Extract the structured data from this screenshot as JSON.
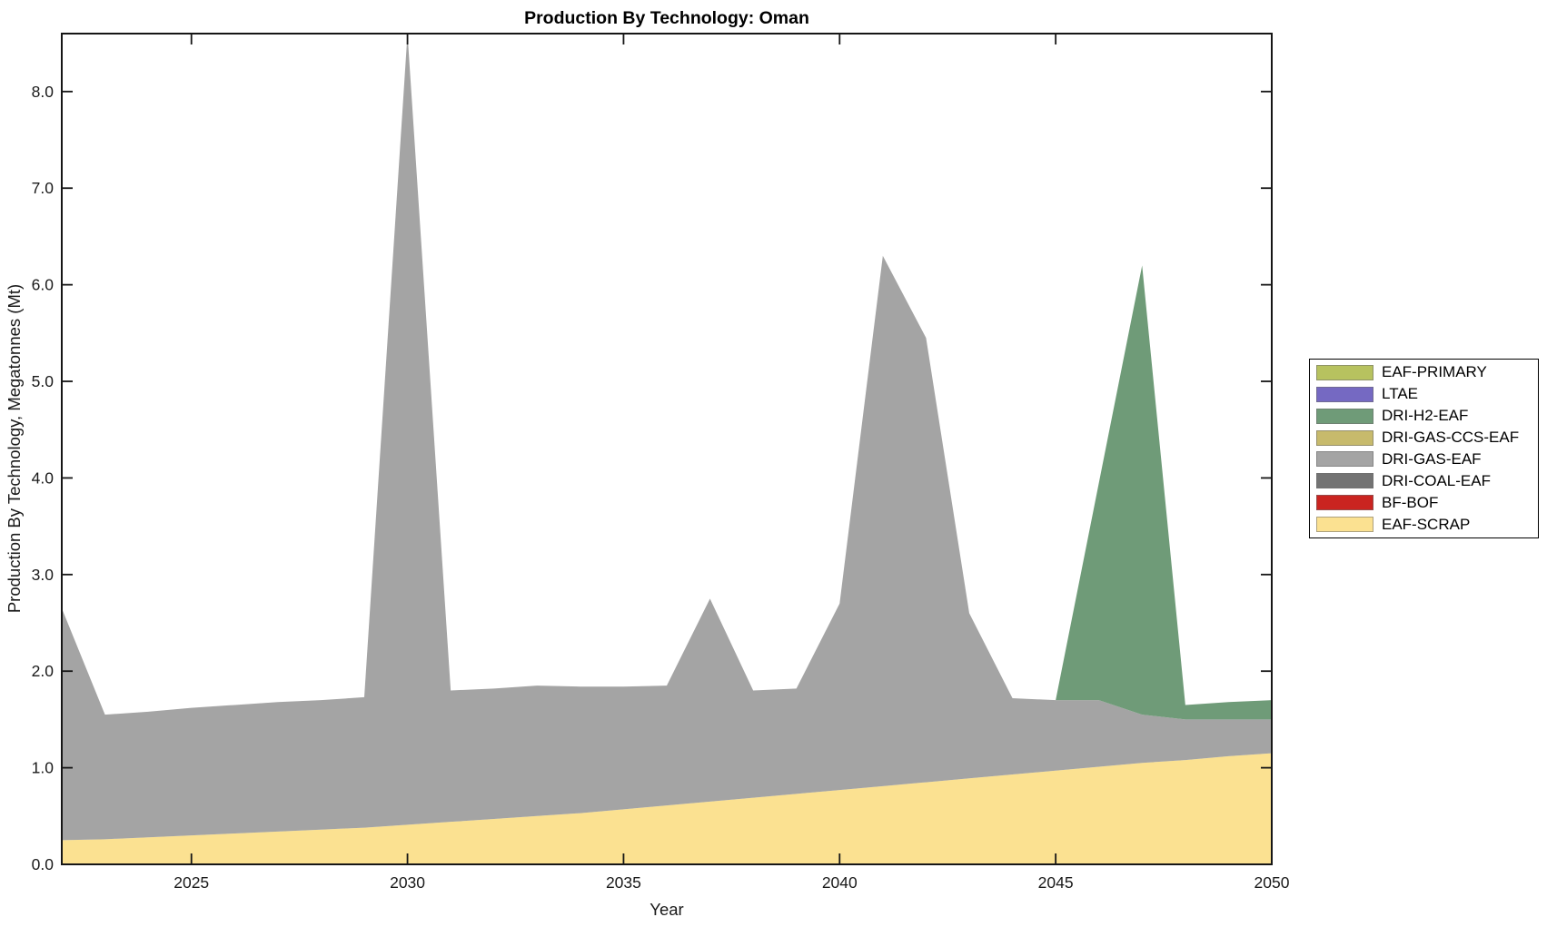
{
  "chart_data": {
    "type": "area",
    "stacked": true,
    "title": "Production By Technology: Oman",
    "xlabel": "Year",
    "ylabel": "Production By Technology, Megatonnes (Mt)",
    "xlim": [
      2022,
      2050
    ],
    "ylim": [
      0,
      8.6
    ],
    "grid": false,
    "legend_position": "right-outside",
    "x": [
      2022,
      2023,
      2024,
      2025,
      2026,
      2027,
      2028,
      2029,
      2030,
      2031,
      2032,
      2033,
      2034,
      2035,
      2036,
      2037,
      2038,
      2039,
      2040,
      2041,
      2042,
      2043,
      2044,
      2045,
      2046,
      2047,
      2048,
      2049,
      2050
    ],
    "xticks": [
      "2025",
      "2030",
      "2035",
      "2040",
      "2045",
      "2050"
    ],
    "xtick_values": [
      2025,
      2030,
      2035,
      2040,
      2045,
      2050
    ],
    "yticks": [
      "0.0",
      "1.0",
      "2.0",
      "3.0",
      "4.0",
      "5.0",
      "6.0",
      "7.0",
      "8.0"
    ],
    "ytick_values": [
      0,
      1,
      2,
      3,
      4,
      5,
      6,
      7,
      8
    ],
    "series": [
      {
        "name": "EAF-SCRAP",
        "color": "#fbe191",
        "values": [
          0.25,
          0.26,
          0.28,
          0.3,
          0.32,
          0.34,
          0.36,
          0.38,
          0.41,
          0.44,
          0.47,
          0.5,
          0.53,
          0.57,
          0.61,
          0.65,
          0.69,
          0.73,
          0.77,
          0.81,
          0.85,
          0.89,
          0.93,
          0.97,
          1.01,
          1.05,
          1.08,
          1.12,
          1.15
        ]
      },
      {
        "name": "BF-BOF",
        "color": "#ca2420",
        "values": [
          0,
          0,
          0,
          0,
          0,
          0,
          0,
          0,
          0,
          0,
          0,
          0,
          0,
          0,
          0,
          0,
          0,
          0,
          0,
          0,
          0,
          0,
          0,
          0,
          0,
          0,
          0,
          0,
          0
        ]
      },
      {
        "name": "DRI-COAL-EAF",
        "color": "#737373",
        "values": [
          0,
          0,
          0,
          0,
          0,
          0,
          0,
          0,
          0,
          0,
          0,
          0,
          0,
          0,
          0,
          0,
          0,
          0,
          0,
          0,
          0,
          0,
          0,
          0,
          0,
          0,
          0,
          0,
          0
        ]
      },
      {
        "name": "DRI-GAS-EAF",
        "color": "#a4a4a4",
        "values": [
          2.4,
          1.29,
          1.3,
          1.32,
          1.33,
          1.34,
          1.34,
          1.35,
          8.19,
          1.36,
          1.35,
          1.35,
          1.31,
          1.27,
          1.24,
          2.1,
          1.11,
          1.09,
          1.93,
          5.49,
          4.6,
          1.71,
          0.79,
          0.73,
          0.69,
          0.5,
          0.42,
          0.38,
          0.35
        ]
      },
      {
        "name": "DRI-GAS-CCS-EAF",
        "color": "#c7ba6c",
        "values": [
          0,
          0,
          0,
          0,
          0,
          0,
          0,
          0,
          0,
          0,
          0,
          0,
          0,
          0,
          0,
          0,
          0,
          0,
          0,
          0,
          0,
          0,
          0,
          0,
          0,
          0,
          0,
          0,
          0
        ]
      },
      {
        "name": "DRI-H2-EAF",
        "color": "#6f9b78",
        "values": [
          0,
          0,
          0,
          0,
          0,
          0,
          0,
          0,
          0,
          0,
          0,
          0,
          0,
          0,
          0,
          0,
          0,
          0,
          0,
          0,
          0,
          0,
          0,
          0,
          2.25,
          4.65,
          0.15,
          0.18,
          0.2
        ]
      },
      {
        "name": "LTAE",
        "color": "#7569c2",
        "values": [
          0,
          0,
          0,
          0,
          0,
          0,
          0,
          0,
          0,
          0,
          0,
          0,
          0,
          0,
          0,
          0,
          0,
          0,
          0,
          0,
          0,
          0,
          0,
          0,
          0,
          0,
          0,
          0,
          0
        ]
      },
      {
        "name": "EAF-PRIMARY",
        "color": "#b7c25f",
        "values": [
          0,
          0,
          0,
          0,
          0,
          0,
          0,
          0,
          0,
          0,
          0,
          0,
          0,
          0,
          0,
          0,
          0,
          0,
          0,
          0,
          0,
          0,
          0,
          0,
          0,
          0,
          0,
          0,
          0
        ]
      }
    ]
  },
  "legend": {
    "items": [
      {
        "label": "EAF-PRIMARY",
        "color": "#b7c25f"
      },
      {
        "label": "LTAE",
        "color": "#7569c2"
      },
      {
        "label": "DRI-H2-EAF",
        "color": "#6f9b78"
      },
      {
        "label": "DRI-GAS-CCS-EAF",
        "color": "#c7ba6c"
      },
      {
        "label": "DRI-GAS-EAF",
        "color": "#a4a4a4"
      },
      {
        "label": "DRI-COAL-EAF",
        "color": "#737373"
      },
      {
        "label": "BF-BOF",
        "color": "#ca2420"
      },
      {
        "label": "EAF-SCRAP",
        "color": "#fbe191"
      }
    ]
  }
}
